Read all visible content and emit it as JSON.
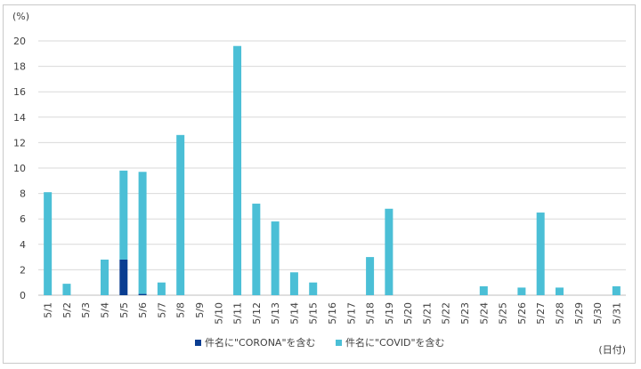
{
  "chart_data": {
    "type": "bar",
    "stacked": true,
    "y_unit_label": "(%)",
    "x_unit_label": "(日付)",
    "ylim": [
      0,
      20
    ],
    "yticks": [
      0,
      2,
      4,
      6,
      8,
      10,
      12,
      14,
      16,
      18,
      20
    ],
    "grid": true,
    "legend_position": "bottom",
    "categories": [
      "5/1",
      "5/2",
      "5/3",
      "5/4",
      "5/5",
      "5/6",
      "5/7",
      "5/8",
      "5/9",
      "5/10",
      "5/11",
      "5/12",
      "5/13",
      "5/14",
      "5/15",
      "5/16",
      "5/17",
      "5/18",
      "5/19",
      "5/20",
      "5/21",
      "5/22",
      "5/23",
      "5/24",
      "5/25",
      "5/26",
      "5/27",
      "5/28",
      "5/29",
      "5/30",
      "5/31"
    ],
    "series": [
      {
        "name": "件名に\"CORONA\"を含む",
        "color": "#0a3d91",
        "values": [
          0,
          0,
          0,
          0,
          2.8,
          0.1,
          0,
          0,
          0,
          0,
          0,
          0,
          0,
          0,
          0,
          0,
          0,
          0,
          0,
          0,
          0,
          0,
          0,
          0,
          0,
          0,
          0,
          0,
          0,
          0,
          0
        ]
      },
      {
        "name": "件名に\"COVID\"を含む",
        "color": "#4bbfd6",
        "values": [
          8.1,
          0.9,
          0,
          2.8,
          7.0,
          9.6,
          1.0,
          12.6,
          0,
          0,
          19.6,
          7.2,
          5.8,
          1.8,
          1.0,
          0,
          0,
          3.0,
          6.8,
          0,
          0,
          0,
          0,
          0.7,
          0,
          0.6,
          6.5,
          0.6,
          0,
          0,
          0.7
        ]
      }
    ]
  }
}
